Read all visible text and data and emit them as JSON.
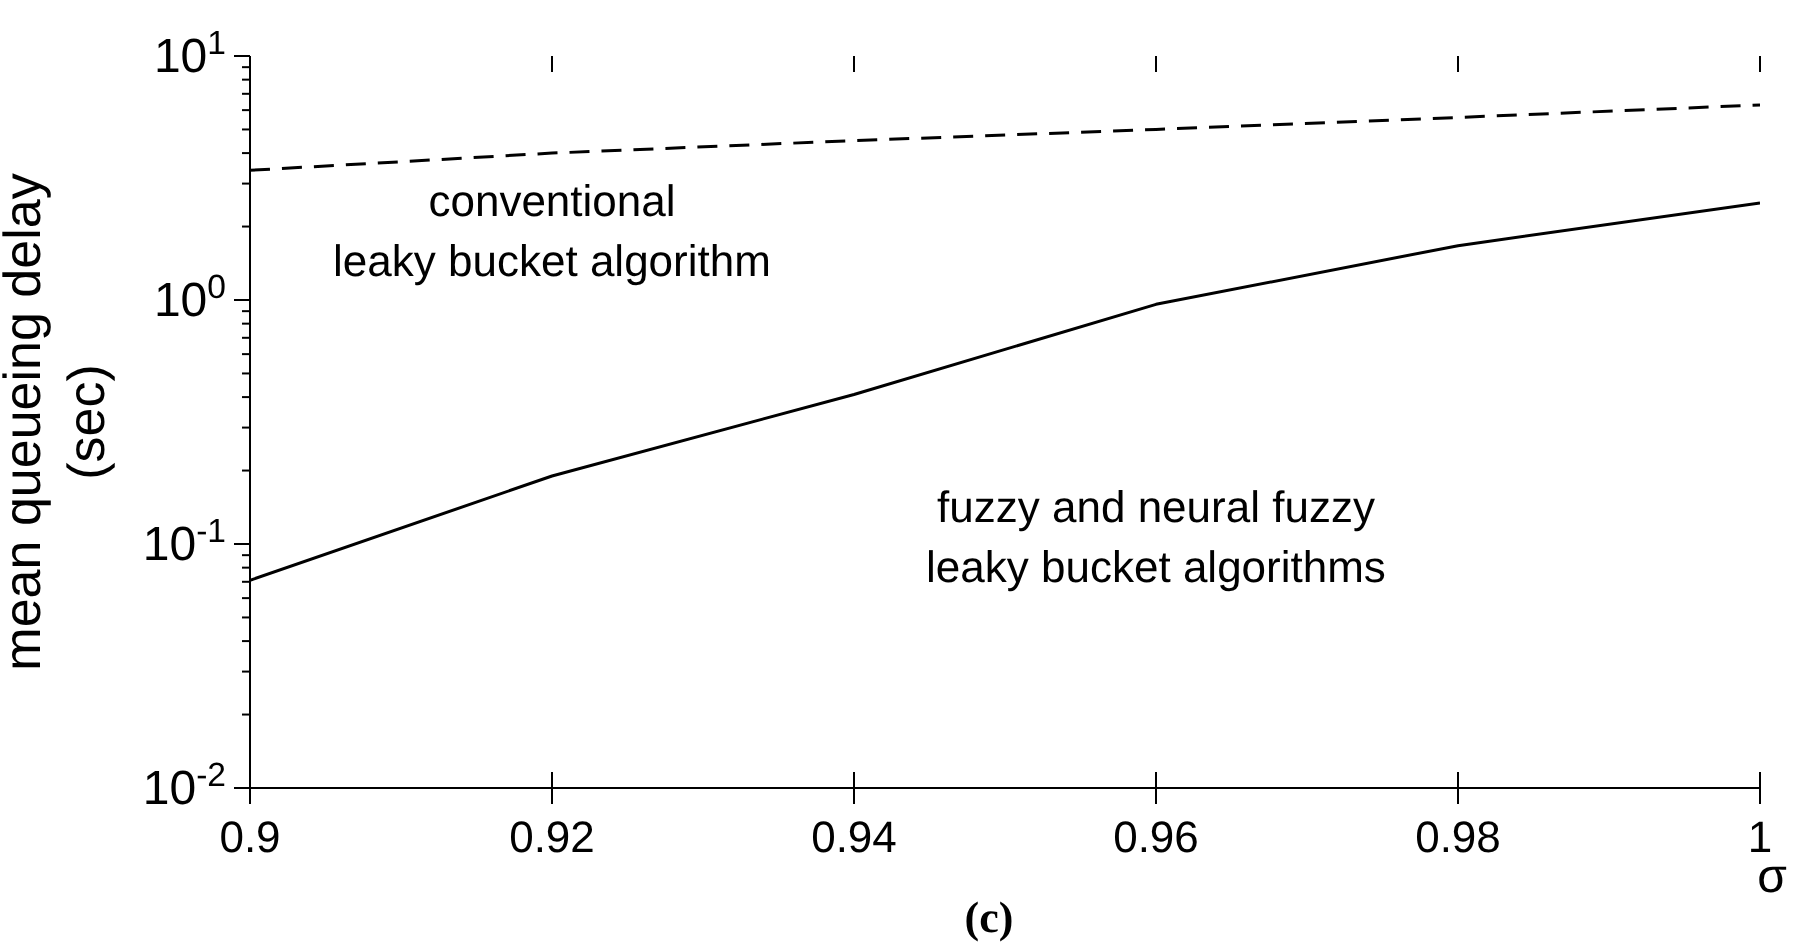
{
  "chart_data": {
    "type": "line",
    "xlabel": "σ",
    "ylabel": "mean queueing delay\n(sec)",
    "annotations": [
      "(c)"
    ],
    "x": [
      0.9,
      0.92,
      0.94,
      0.96,
      0.98,
      1
    ],
    "series": [
      {
        "name": "conventional\nleaky bucket algorithm",
        "color": "#000000",
        "line_style": "dashed",
        "values": [
          3.4,
          4.0,
          4.5,
          5.0,
          5.6,
          6.3
        ]
      },
      {
        "name": "fuzzy and neural fuzzy\nleaky bucket algorithms",
        "color": "#000000",
        "line_style": "solid",
        "values": [
          0.071,
          0.19,
          0.41,
          0.96,
          1.67,
          2.5
        ]
      }
    ],
    "xlim": [
      0.9,
      1
    ],
    "xticks": [
      0.9,
      0.92,
      0.94,
      0.96,
      0.98,
      1
    ],
    "ylim": [
      0.01,
      10
    ],
    "log": "y",
    "yticks": [
      {
        "value": 0.01,
        "label": "10$^{-2}$"
      },
      {
        "value": 0.02,
        "label": null
      },
      {
        "value": 0.03,
        "label": null
      },
      {
        "value": 0.04,
        "label": null
      },
      {
        "value": 0.05,
        "label": null
      },
      {
        "value": 0.06,
        "label": null
      },
      {
        "value": 0.07,
        "label": null
      },
      {
        "value": 0.08,
        "label": null
      },
      {
        "value": 0.09,
        "label": null
      },
      {
        "value": 0.1,
        "label": "10$^{-1}$"
      },
      {
        "value": 0.2,
        "label": null
      },
      {
        "value": 0.3,
        "label": null
      },
      {
        "value": 0.4,
        "label": null
      },
      {
        "value": 0.5,
        "label": null
      },
      {
        "value": 0.6,
        "label": null
      },
      {
        "value": 0.7,
        "label": null
      },
      {
        "value": 0.8,
        "label": null
      },
      {
        "value": 0.9,
        "label": null
      },
      {
        "value": 1,
        "label": "10$^{0}$"
      },
      {
        "value": 2,
        "label": null
      },
      {
        "value": 3,
        "label": null
      },
      {
        "value": 4,
        "label": null
      },
      {
        "value": 5,
        "label": null
      },
      {
        "value": 6,
        "label": null
      },
      {
        "value": 7,
        "label": null
      },
      {
        "value": 8,
        "label": null
      },
      {
        "value": 9,
        "label": null
      },
      {
        "value": 10,
        "label": "10$^{1}$"
      }
    ],
    "grid": false,
    "legend": false,
    "marker": "none"
  }
}
